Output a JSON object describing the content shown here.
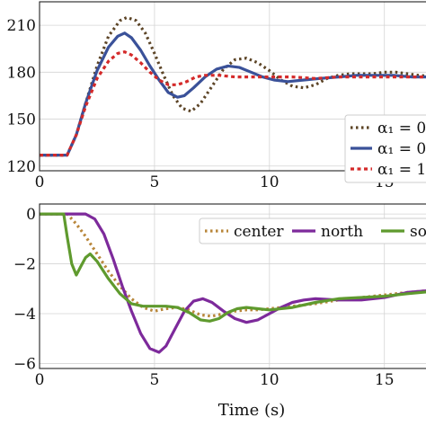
{
  "chart_data": [
    {
      "type": "line",
      "xlim": [
        0,
        17.2
      ],
      "ylim": [
        117,
        225
      ],
      "xticks": [
        0,
        5,
        10,
        15
      ],
      "yticks": [
        120,
        150,
        180,
        210
      ],
      "grid": true,
      "legend": {
        "placement": "bottom-right",
        "entries": [
          "α₁ = 0",
          "α₁ = 0",
          "α₁ = 1"
        ]
      },
      "series": [
        {
          "name": "α₁ = 0",
          "color": "#5c4426",
          "dash": "dotted",
          "x": [
            0,
            1.2,
            1.6,
            2.0,
            2.5,
            3.0,
            3.5,
            3.8,
            4.2,
            4.6,
            5.0,
            5.4,
            5.8,
            6.2,
            6.6,
            7.0,
            7.5,
            8.0,
            8.5,
            9.0,
            9.5,
            10.0,
            10.5,
            11.0,
            11.5,
            12.0,
            12.5,
            13.0,
            13.5,
            14.0,
            14.5,
            15.0,
            15.5,
            16.0,
            16.5,
            17.2
          ],
          "y": [
            127,
            127,
            140,
            160,
            184,
            203,
            213,
            215,
            213,
            205,
            192,
            178,
            165,
            157,
            155,
            160,
            171,
            182,
            188,
            189,
            186,
            181,
            175,
            171,
            170,
            172,
            176,
            178,
            179,
            179,
            179,
            180,
            180,
            179,
            178,
            177
          ]
        },
        {
          "name": "α₁ = 0",
          "color": "#3a5199",
          "dash": "solid",
          "x": [
            0,
            1.2,
            1.6,
            2.0,
            2.5,
            3.0,
            3.4,
            3.7,
            4.0,
            4.4,
            4.8,
            5.2,
            5.6,
            6.0,
            6.3,
            6.7,
            7.2,
            7.7,
            8.2,
            8.7,
            9.2,
            9.7,
            10.2,
            10.8,
            11.5,
            12.2,
            13.0,
            13.8,
            14.6,
            15.4,
            16.2,
            17.2
          ],
          "y": [
            127,
            127,
            140,
            160,
            181,
            196,
            203,
            205,
            202,
            194,
            184,
            175,
            167,
            164,
            165,
            170,
            177,
            182,
            184,
            183,
            180,
            177,
            175,
            174,
            175,
            176,
            177,
            178,
            178,
            178,
            177,
            177
          ]
        },
        {
          "name": "α₁ = 1",
          "color": "#d42a2a",
          "dash": "dashed",
          "x": [
            0,
            1.2,
            1.6,
            2.0,
            2.5,
            3.0,
            3.4,
            3.7,
            4.0,
            4.4,
            4.8,
            5.2,
            5.6,
            6.0,
            6.4,
            6.8,
            7.2,
            7.8,
            8.5,
            9.2,
            10.0,
            11.0,
            12.0,
            13.0,
            14.0,
            15.0,
            16.0,
            17.2
          ],
          "y": [
            127,
            127,
            140,
            158,
            176,
            187,
            192,
            193,
            191,
            186,
            180,
            175,
            172,
            172,
            174,
            177,
            178,
            178,
            177,
            177,
            177,
            177,
            176,
            177,
            177,
            177,
            177,
            177
          ]
        }
      ]
    },
    {
      "type": "line",
      "xlim": [
        0,
        17.2
      ],
      "ylim": [
        -6.2,
        0.4
      ],
      "xticks": [
        0,
        5,
        10,
        15
      ],
      "yticks": [
        0,
        -2,
        -4,
        -6
      ],
      "xlabel": "Time (s)",
      "grid": true,
      "legend": {
        "placement": "top-right",
        "entries": [
          "center",
          "north",
          "sou"
        ]
      },
      "series": [
        {
          "name": "center",
          "color": "#b8863a",
          "dash": "dotted",
          "x": [
            0,
            1.2,
            1.6,
            2.0,
            2.5,
            3.0,
            3.5,
            4.0,
            4.5,
            5.0,
            5.5,
            6.0,
            6.5,
            7.0,
            7.5,
            8.0,
            8.5,
            9.0,
            9.5,
            10.0,
            11.0,
            12.0,
            13.0,
            14.0,
            15.0,
            16.0,
            17.2
          ],
          "y": [
            0,
            0,
            -0.4,
            -0.9,
            -1.6,
            -2.3,
            -2.9,
            -3.4,
            -3.75,
            -3.9,
            -3.8,
            -3.75,
            -3.85,
            -4.05,
            -4.1,
            -4.0,
            -3.9,
            -3.85,
            -3.85,
            -3.8,
            -3.7,
            -3.6,
            -3.45,
            -3.35,
            -3.25,
            -3.15,
            -3.05
          ]
        },
        {
          "name": "north",
          "color": "#7d2a9b",
          "dash": "solid",
          "x": [
            0,
            2.0,
            2.4,
            2.8,
            3.2,
            3.6,
            4.0,
            4.4,
            4.8,
            5.2,
            5.5,
            5.9,
            6.3,
            6.7,
            7.1,
            7.5,
            8.0,
            8.5,
            9.0,
            9.5,
            10.0,
            10.5,
            11.0,
            11.5,
            12.0,
            13.0,
            14.0,
            15.0,
            16.0,
            17.2
          ],
          "y": [
            0,
            0,
            -0.2,
            -0.8,
            -1.8,
            -2.9,
            -3.9,
            -4.8,
            -5.4,
            -5.55,
            -5.3,
            -4.6,
            -3.9,
            -3.5,
            -3.4,
            -3.55,
            -3.9,
            -4.2,
            -4.35,
            -4.25,
            -4.0,
            -3.75,
            -3.55,
            -3.45,
            -3.4,
            -3.45,
            -3.45,
            -3.35,
            -3.15,
            -3.05
          ]
        },
        {
          "name": "sou",
          "color": "#5f9a2e",
          "dash": "solid",
          "x": [
            0,
            1.05,
            1.2,
            1.4,
            1.6,
            1.8,
            2.0,
            2.2,
            2.5,
            3.0,
            3.5,
            4.0,
            4.5,
            5.0,
            5.5,
            6.0,
            6.5,
            7.0,
            7.4,
            7.8,
            8.2,
            8.6,
            9.0,
            9.5,
            10.0,
            11.0,
            12.0,
            13.0,
            14.0,
            15.0,
            16.0,
            17.2
          ],
          "y": [
            0,
            0,
            -0.9,
            -2.0,
            -2.45,
            -2.1,
            -1.75,
            -1.6,
            -1.9,
            -2.6,
            -3.2,
            -3.6,
            -3.7,
            -3.7,
            -3.7,
            -3.75,
            -3.95,
            -4.25,
            -4.3,
            -4.2,
            -3.95,
            -3.8,
            -3.75,
            -3.8,
            -3.85,
            -3.75,
            -3.55,
            -3.4,
            -3.35,
            -3.3,
            -3.2,
            -3.1
          ]
        }
      ]
    }
  ]
}
